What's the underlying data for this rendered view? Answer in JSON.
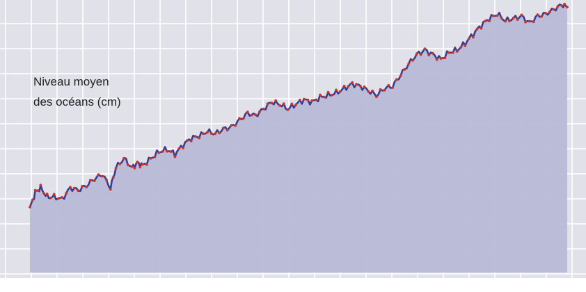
{
  "chart_data": {
    "type": "area",
    "title": "",
    "ylabel_lines": [
      "Niveau moyen",
      "des  océans (cm)"
    ],
    "xlabel": "",
    "xlim": [
      0,
      1
    ],
    "ylim": [
      0,
      10
    ],
    "grid": true,
    "legend": "none",
    "colors": {
      "background": "#e1e1e9",
      "grid": "#ffffff",
      "area_fill": "#b8b9d6",
      "line": "#3b3c8f",
      "markers": "#c8362c"
    },
    "series": [
      {
        "x": [
          0.0,
          0.01,
          0.02,
          0.032,
          0.045,
          0.06,
          0.075,
          0.09,
          0.105,
          0.12,
          0.135,
          0.15,
          0.16,
          0.175,
          0.19,
          0.2,
          0.21,
          0.225,
          0.24,
          0.255,
          0.27,
          0.285,
          0.3,
          0.315,
          0.33,
          0.345,
          0.36,
          0.375,
          0.39,
          0.405,
          0.42,
          0.435,
          0.45,
          0.465,
          0.48,
          0.495,
          0.51,
          0.525,
          0.54,
          0.555,
          0.57,
          0.585,
          0.6,
          0.615,
          0.63,
          0.645,
          0.66,
          0.675,
          0.69,
          0.705,
          0.72,
          0.735,
          0.75,
          0.765,
          0.78,
          0.795,
          0.81,
          0.825,
          0.84,
          0.855,
          0.87,
          0.885,
          0.9,
          0.915,
          0.93,
          0.945,
          0.96,
          0.975,
          0.99,
          1.0
        ],
        "y": [
          1.4,
          2.1,
          2.3,
          1.9,
          1.9,
          1.8,
          2.3,
          2.2,
          2.4,
          2.7,
          2.9,
          2.3,
          3.2,
          3.6,
          3.2,
          3.4,
          3.3,
          3.6,
          3.9,
          4.0,
          3.8,
          4.2,
          4.5,
          4.6,
          4.8,
          4.7,
          4.9,
          5.0,
          5.3,
          5.6,
          5.5,
          5.8,
          6.1,
          6.0,
          5.8,
          6.0,
          6.2,
          6.1,
          6.3,
          6.4,
          6.5,
          6.7,
          6.9,
          6.8,
          6.6,
          6.4,
          6.7,
          6.8,
          7.3,
          7.8,
          8.2,
          8.4,
          8.2,
          8.0,
          8.3,
          8.4,
          8.7,
          9.1,
          9.5,
          9.8,
          10.0,
          9.7,
          9.8,
          9.9,
          9.6,
          9.9,
          10.0,
          10.2,
          10.4,
          10.3
        ]
      }
    ]
  }
}
